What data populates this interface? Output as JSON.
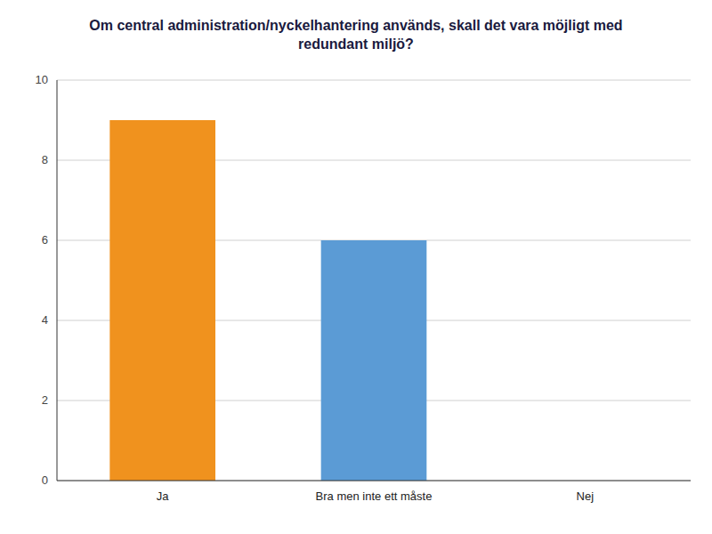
{
  "chart_data": {
    "type": "bar",
    "title": "Om central administration/nyckelhantering används, skall det vara möjligt med\nredundant miljö?",
    "categories": [
      "Ja",
      "Bra men inte ett måste",
      "Nej"
    ],
    "values": [
      9,
      6,
      0
    ],
    "colors": [
      "#f0921e",
      "#5b9bd5",
      "#cc0000"
    ],
    "ylim": [
      0,
      10
    ],
    "yticks": [
      0,
      2,
      4,
      6,
      8,
      10
    ],
    "grid": true
  }
}
